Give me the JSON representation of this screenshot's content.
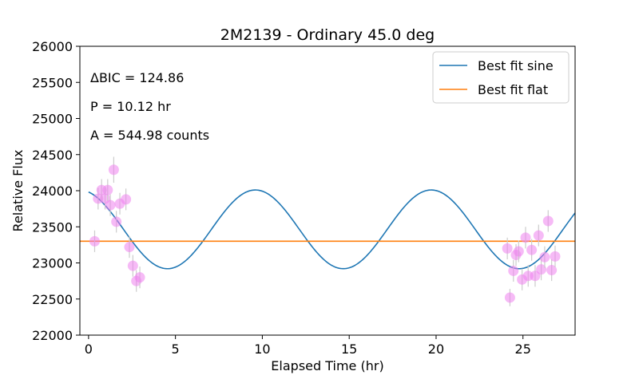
{
  "chart_data": {
    "type": "scatter",
    "title": "2M2139 - Ordinary 45.0 deg",
    "xlabel": "Elapsed Time (hr)",
    "ylabel": "Relative Flux",
    "xlim": [
      -0.5,
      28
    ],
    "ylim": [
      22000,
      26000
    ],
    "xticks": [
      0,
      5,
      10,
      15,
      20,
      25
    ],
    "yticks": [
      22000,
      22500,
      23000,
      23500,
      24000,
      24500,
      25000,
      25500,
      26000
    ],
    "grid": false,
    "legend_position": "top-right",
    "annotations": [
      "ΔBIC = 124.86",
      "P = 10.12 hr",
      "A = 544.98 counts"
    ],
    "series": [
      {
        "name": "Best fit sine",
        "kind": "line",
        "color": "#1f77b4",
        "function": "sine",
        "offset": 23465,
        "amplitude": 545,
        "period_hr": 10.12,
        "peak_time_hr": 9.6,
        "x_range": [
          0,
          28
        ]
      },
      {
        "name": "Best fit flat",
        "kind": "line",
        "color": "#ff7f0e",
        "function": "constant",
        "value": 23300,
        "x_range": [
          -0.5,
          28
        ]
      },
      {
        "kind": "points",
        "color": "#ee82ee",
        "points": [
          {
            "x": 0.35,
            "y": 23300,
            "err": 150
          },
          {
            "x": 0.55,
            "y": 23890,
            "err": 150
          },
          {
            "x": 0.75,
            "y": 24010,
            "err": 150
          },
          {
            "x": 0.95,
            "y": 23890,
            "err": 150
          },
          {
            "x": 1.1,
            "y": 24010,
            "err": 150
          },
          {
            "x": 1.25,
            "y": 23800,
            "err": 150
          },
          {
            "x": 1.45,
            "y": 24290,
            "err": 180
          },
          {
            "x": 1.6,
            "y": 23570,
            "err": 150
          },
          {
            "x": 1.8,
            "y": 23820,
            "err": 150
          },
          {
            "x": 2.15,
            "y": 23880,
            "err": 150
          },
          {
            "x": 2.35,
            "y": 23220,
            "err": 150
          },
          {
            "x": 2.55,
            "y": 22960,
            "err": 150
          },
          {
            "x": 2.75,
            "y": 22750,
            "err": 150
          },
          {
            "x": 2.95,
            "y": 22800,
            "err": 150
          },
          {
            "x": 24.1,
            "y": 23200,
            "err": 150
          },
          {
            "x": 24.25,
            "y": 22520,
            "err": 120
          },
          {
            "x": 24.45,
            "y": 22890,
            "err": 150
          },
          {
            "x": 24.6,
            "y": 23110,
            "err": 150
          },
          {
            "x": 24.75,
            "y": 23160,
            "err": 150
          },
          {
            "x": 24.95,
            "y": 22770,
            "err": 150
          },
          {
            "x": 25.15,
            "y": 23350,
            "err": 150
          },
          {
            "x": 25.3,
            "y": 22820,
            "err": 150
          },
          {
            "x": 25.5,
            "y": 23180,
            "err": 150
          },
          {
            "x": 25.7,
            "y": 22820,
            "err": 150
          },
          {
            "x": 25.9,
            "y": 23380,
            "err": 150
          },
          {
            "x": 26.05,
            "y": 22910,
            "err": 150
          },
          {
            "x": 26.25,
            "y": 23080,
            "err": 150
          },
          {
            "x": 26.45,
            "y": 23580,
            "err": 150
          },
          {
            "x": 26.65,
            "y": 22900,
            "err": 150
          },
          {
            "x": 26.85,
            "y": 23090,
            "err": 150
          }
        ]
      }
    ]
  }
}
